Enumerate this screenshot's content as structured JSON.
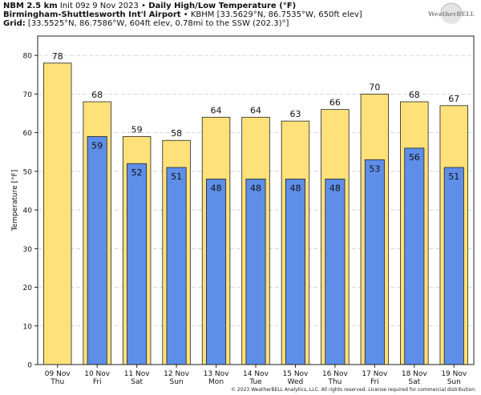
{
  "header": {
    "line1_bold_a": "NBM 2.5 km",
    "line1_normal_a": "Init 09z 9 Nov 2023",
    "line1_bullet": "•",
    "line1_bold_b": "Daily High/Low Temperature (°F)",
    "line2_bold": "Birmingham-Shuttlesworth Int'l Airport",
    "line2_bullet": "•",
    "line2_normal": "KBHM [33.5629°N, 86.7535°W, 650ft elev]",
    "line3_bold": "Grid:",
    "line3_normal": "[33.5525°N, 86.7586°W, 604ft elev, 0.78mi to the SSW (202.3)°]"
  },
  "logo": {
    "text": "WeatherBELL"
  },
  "copyright": "© 2023 WeatherBELL Analytics, LLC. All rights reserved. License required for commercial distribution.",
  "colors": {
    "high": "#ffe17a",
    "low": "#5e8ee8",
    "outline": "#222222",
    "grid": "#cccccc"
  },
  "chart_data": {
    "type": "bar",
    "ylabel": "Temperature [°F]",
    "ylim": [
      0,
      85
    ],
    "yticks": [
      0,
      10,
      20,
      30,
      40,
      50,
      60,
      70,
      80
    ],
    "grid": true,
    "categories": [
      {
        "date": "09 Nov",
        "day": "Thu"
      },
      {
        "date": "10 Nov",
        "day": "Fri"
      },
      {
        "date": "11 Nov",
        "day": "Sat"
      },
      {
        "date": "12 Nov",
        "day": "Sun"
      },
      {
        "date": "13 Nov",
        "day": "Mon"
      },
      {
        "date": "14 Nov",
        "day": "Tue"
      },
      {
        "date": "15 Nov",
        "day": "Wed"
      },
      {
        "date": "16 Nov",
        "day": "Thu"
      },
      {
        "date": "17 Nov",
        "day": "Fri"
      },
      {
        "date": "18 Nov",
        "day": "Sat"
      },
      {
        "date": "19 Nov",
        "day": "Sun"
      }
    ],
    "series": [
      {
        "values": [
          78,
          68,
          59,
          58,
          64,
          64,
          63,
          66,
          70,
          68,
          67
        ],
        "labels": [
          "78",
          "68",
          "59",
          "58",
          "64",
          "64",
          "63",
          "66",
          "70",
          "68",
          "67"
        ]
      },
      {
        "values": [
          null,
          59,
          52,
          51,
          48,
          48,
          48,
          48,
          53,
          56,
          51
        ],
        "labels": [
          null,
          "59",
          "52",
          "51",
          "48",
          "48",
          "48",
          "48",
          "53",
          "56",
          "51"
        ]
      }
    ]
  }
}
